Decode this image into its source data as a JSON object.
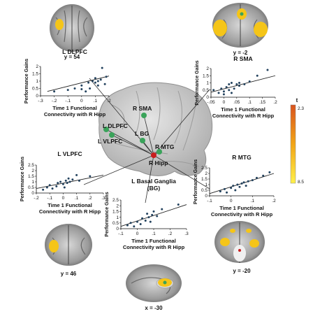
{
  "panels": {
    "ldlpfc": {
      "title": "L DLPFC",
      "ylabel": "Performance Gains",
      "xlabel": [
        "Time 1 Functional",
        "Connectivity with R Hipp"
      ],
      "xticks": [
        "-.3",
        "-.2",
        "-.1",
        "0",
        ".1",
        ".2"
      ],
      "yticks": [
        "0",
        "0.5",
        "1",
        "1.5",
        "2"
      ],
      "xlim": [
        -0.3,
        0.2
      ],
      "ylim": [
        0,
        2
      ],
      "points": [
        [
          -0.2,
          0.3
        ],
        [
          -0.1,
          0.4
        ],
        [
          -0.05,
          0.5
        ],
        [
          0.0,
          0.45
        ],
        [
          0.0,
          0.7
        ],
        [
          0.03,
          0.3
        ],
        [
          0.05,
          0.9
        ],
        [
          0.06,
          0.5
        ],
        [
          0.08,
          1.0
        ],
        [
          0.1,
          0.9
        ],
        [
          0.1,
          1.2
        ],
        [
          0.12,
          1.0
        ],
        [
          0.12,
          0.7
        ],
        [
          0.14,
          1.1
        ],
        [
          0.15,
          1.9
        ],
        [
          0.17,
          0.8
        ],
        [
          0.18,
          1.3
        ]
      ],
      "fit": [
        [
          -0.25,
          0.3
        ],
        [
          0.2,
          1.35
        ]
      ]
    },
    "rsma": {
      "title": "R SMA",
      "ylabel": "Performance Gains",
      "xlabel": [
        "Time 1 Functional",
        "Connectivity with R Hipp"
      ],
      "xticks": [
        "-.05",
        "0",
        ".05",
        ".1",
        ".15",
        ".2"
      ],
      "yticks": [
        "0",
        "0.5",
        "1",
        "1.5",
        "2"
      ],
      "xlim": [
        -0.05,
        0.2
      ],
      "ylim": [
        0,
        2
      ],
      "points": [
        [
          -0.04,
          0.5
        ],
        [
          -0.02,
          0.3
        ],
        [
          -0.01,
          0.6
        ],
        [
          0.0,
          0.2
        ],
        [
          0.0,
          0.4
        ],
        [
          0.01,
          0.7
        ],
        [
          0.02,
          0.5
        ],
        [
          0.02,
          0.9
        ],
        [
          0.03,
          0.3
        ],
        [
          0.03,
          1.0
        ],
        [
          0.04,
          0.6
        ],
        [
          0.05,
          0.9
        ],
        [
          0.06,
          0.8
        ],
        [
          0.06,
          1.0
        ],
        [
          0.08,
          0.9
        ],
        [
          0.1,
          1.1
        ],
        [
          0.13,
          1.5
        ],
        [
          0.17,
          1.9
        ]
      ],
      "fit": [
        [
          -0.05,
          0.35
        ],
        [
          0.2,
          1.5
        ]
      ]
    },
    "lvlpfc": {
      "title": "L VLPFC",
      "ylabel": "Performance Gains",
      "xlabel": [
        "Time 1 Functional",
        "Connectivity with R Hipp"
      ],
      "xticks": [
        "-.2",
        "-.1",
        "0",
        ".1",
        ".2",
        ".3"
      ],
      "yticks": [
        "0",
        "0.5",
        "1",
        "1.5",
        "2",
        "2.5"
      ],
      "xlim": [
        -0.2,
        0.3
      ],
      "ylim": [
        0,
        2.5
      ],
      "points": [
        [
          -0.15,
          0.3
        ],
        [
          -0.12,
          0.5
        ],
        [
          -0.1,
          0.7
        ],
        [
          -0.08,
          0.4
        ],
        [
          -0.05,
          0.6
        ],
        [
          -0.04,
          0.9
        ],
        [
          -0.02,
          1.0
        ],
        [
          0.0,
          0.8
        ],
        [
          0.01,
          0.5
        ],
        [
          0.02,
          1.1
        ],
        [
          0.03,
          0.9
        ],
        [
          0.04,
          1.3
        ],
        [
          0.05,
          1.0
        ],
        [
          0.07,
          1.2
        ],
        [
          0.1,
          1.6
        ],
        [
          0.12,
          1.1
        ],
        [
          0.2,
          1.5
        ]
      ],
      "fit": [
        [
          -0.2,
          0.4
        ],
        [
          0.3,
          1.6
        ]
      ]
    },
    "rmtg": {
      "title": "R MTG",
      "ylabel": "Performance Gains",
      "xlabel": [
        "Time 1 Functional",
        "Connectivity with R Hipp"
      ],
      "xticks": [
        "-.1",
        "0",
        ".1",
        ".2"
      ],
      "yticks": [
        "0",
        "0.5",
        "1",
        "1.5",
        "2",
        "2.5"
      ],
      "xlim": [
        -0.1,
        0.2
      ],
      "ylim": [
        0,
        2.5
      ],
      "points": [
        [
          -0.05,
          0.4
        ],
        [
          -0.03,
          0.6
        ],
        [
          -0.02,
          0.3
        ],
        [
          0.0,
          0.7
        ],
        [
          0.01,
          0.9
        ],
        [
          0.02,
          0.5
        ],
        [
          0.03,
          1.0
        ],
        [
          0.04,
          0.8
        ],
        [
          0.05,
          1.1
        ],
        [
          0.06,
          1.2
        ],
        [
          0.07,
          0.9
        ],
        [
          0.08,
          1.3
        ],
        [
          0.1,
          1.4
        ],
        [
          0.12,
          1.6
        ],
        [
          0.15,
          1.8
        ],
        [
          0.18,
          2.1
        ]
      ],
      "fit": [
        [
          -0.1,
          0.2
        ],
        [
          0.2,
          2.0
        ]
      ]
    },
    "lbg": {
      "title": [
        "L Basal Ganglia",
        "(BG)"
      ],
      "ylabel": "Performance Gains",
      "xlabel": [
        "Time 1 Functional",
        "Connectivity with R Hipp"
      ],
      "xticks": [
        "-.1",
        "0",
        ".1",
        ".2",
        ".3"
      ],
      "yticks": [
        "0",
        "0.5",
        "1",
        "1.5",
        "2",
        "2.5"
      ],
      "xlim": [
        -0.1,
        0.3
      ],
      "ylim": [
        0,
        2.5
      ],
      "points": [
        [
          -0.06,
          0.3
        ],
        [
          -0.04,
          0.5
        ],
        [
          -0.02,
          0.2
        ],
        [
          0.0,
          0.6
        ],
        [
          0.02,
          0.4
        ],
        [
          0.03,
          0.9
        ],
        [
          0.05,
          0.7
        ],
        [
          0.06,
          1.3
        ],
        [
          0.07,
          1.0
        ],
        [
          0.08,
          0.6
        ],
        [
          0.09,
          1.2
        ],
        [
          0.1,
          1.5
        ],
        [
          0.12,
          1.1
        ],
        [
          0.15,
          1.7
        ],
        [
          0.25,
          2.1
        ]
      ],
      "fit": [
        [
          -0.1,
          0.2
        ],
        [
          0.3,
          2.1
        ]
      ]
    }
  },
  "regions": {
    "rsma": "R SMA",
    "ldlpfc": "L DLPFC",
    "lvlpfc": "L VLPFC",
    "lbg": "L BG",
    "rmtg": "R MTG",
    "rhipp": "R Hipp"
  },
  "slices": {
    "axial": "y = 54",
    "coronal_top": "y = -2",
    "coronal_left": "y = 46",
    "coronal_right": "y = -20",
    "sagittal": "x = -30"
  },
  "colorbar": {
    "label": "t",
    "max": "2.3",
    "min": "8.5"
  },
  "colors": {
    "node": "#3aa35a",
    "hipp": "#c81e1e",
    "activation": "#f5c518"
  }
}
